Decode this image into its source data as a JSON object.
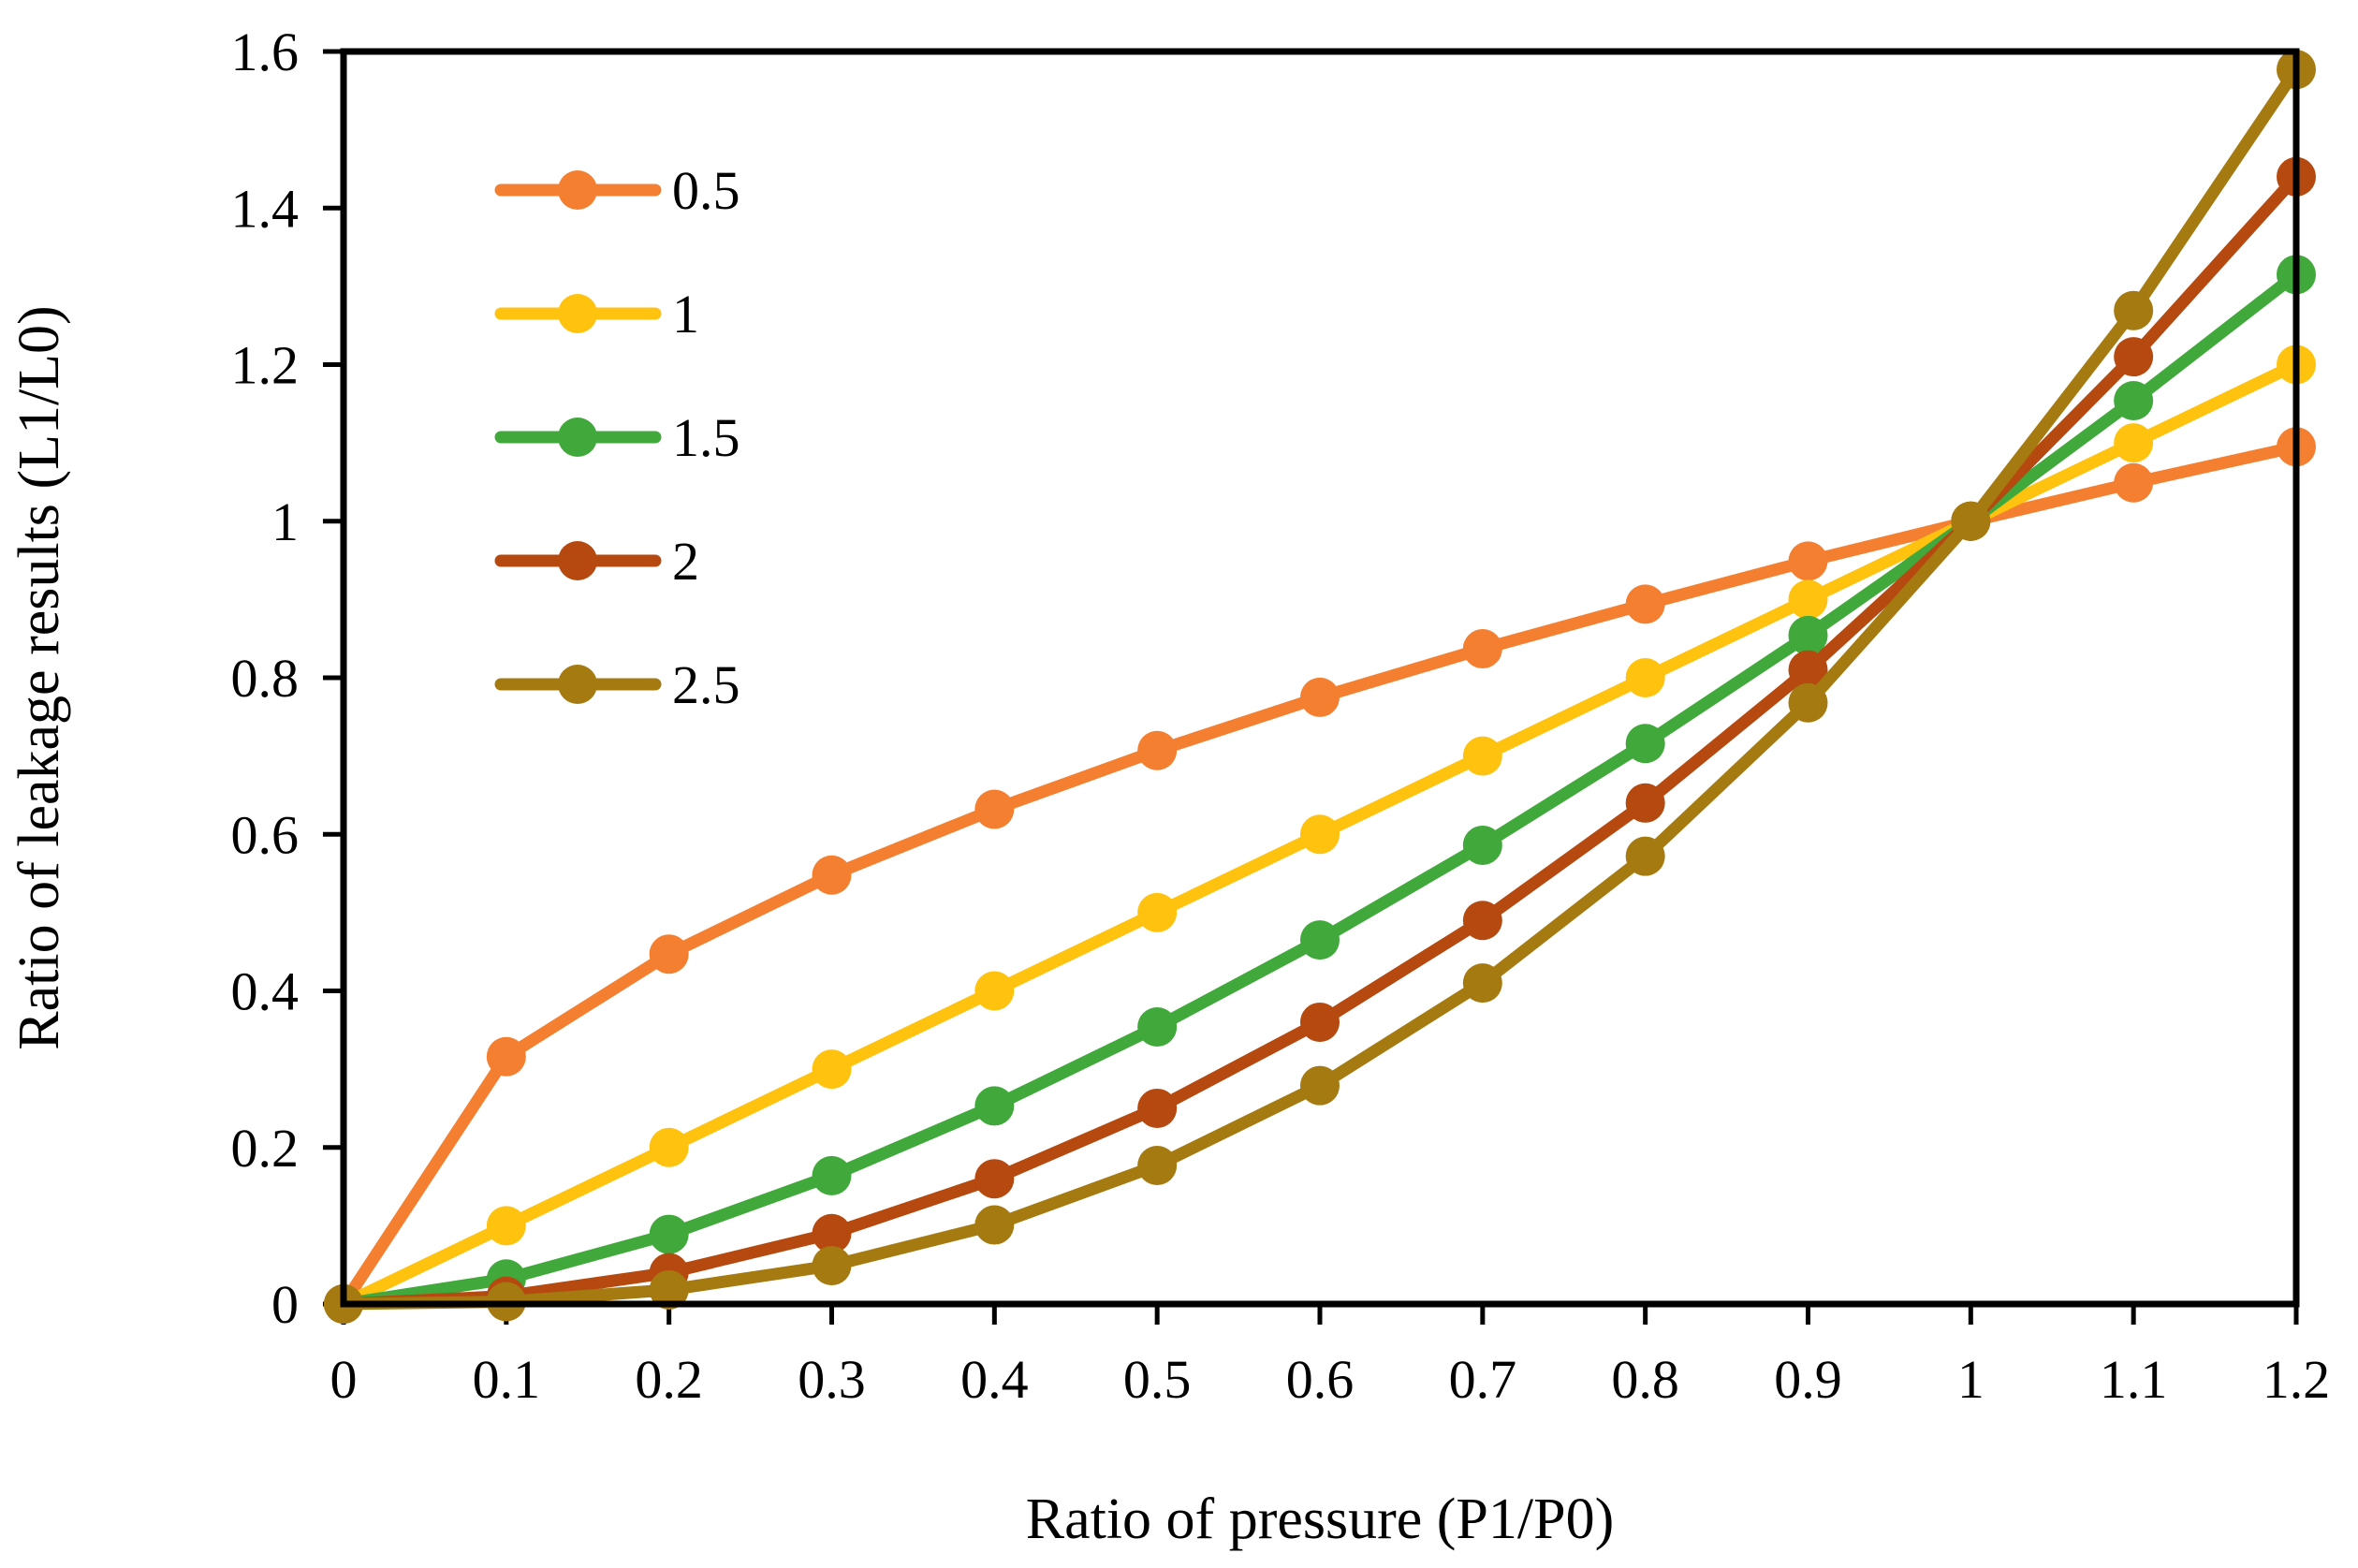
{
  "chart_data": {
    "type": "line",
    "title": "",
    "xlabel": "Ratio of pressure (P1/P0)",
    "ylabel": "Ratio of leakage results (L1/L0)",
    "xlim": [
      0,
      1.2
    ],
    "ylim": [
      0,
      1.6
    ],
    "grid": false,
    "x": [
      0,
      0.1,
      0.2,
      0.3,
      0.4,
      0.5,
      0.6,
      0.7,
      0.8,
      0.9,
      1,
      1.1,
      1.2
    ],
    "x_tick_labels": [
      "0",
      "0.1",
      "0.2",
      "0.3",
      "0.4",
      "0.5",
      "0.6",
      "0.7",
      "0.8",
      "0.9",
      "1",
      "1.1",
      "1.2"
    ],
    "y_ticks": [
      0,
      0.2,
      0.4,
      0.6,
      0.8,
      1,
      1.2,
      1.4,
      1.6
    ],
    "y_tick_labels": [
      "0",
      "0.2",
      "0.4",
      "0.6",
      "0.8",
      "1",
      "1.2",
      "1.4",
      "1.6"
    ],
    "legend_position": "top-left",
    "series": [
      {
        "name": "0.5",
        "color": "#F47F30",
        "values": [
          0,
          0.316,
          0.447,
          0.548,
          0.632,
          0.707,
          0.775,
          0.837,
          0.894,
          0.949,
          1,
          1.049,
          1.095
        ]
      },
      {
        "name": "1",
        "color": "#FFC20E",
        "values": [
          0,
          0.1,
          0.2,
          0.3,
          0.4,
          0.5,
          0.6,
          0.7,
          0.8,
          0.9,
          1,
          1.1,
          1.2
        ]
      },
      {
        "name": "1.5",
        "color": "#41A93B",
        "values": [
          0,
          0.032,
          0.089,
          0.164,
          0.253,
          0.354,
          0.465,
          0.586,
          0.716,
          0.854,
          1,
          1.154,
          1.315
        ]
      },
      {
        "name": "2",
        "color": "#B5490F",
        "values": [
          0,
          0.01,
          0.04,
          0.09,
          0.16,
          0.25,
          0.36,
          0.49,
          0.64,
          0.81,
          1,
          1.21,
          1.44
        ]
      },
      {
        "name": "2.5",
        "color": "#A57A10",
        "values": [
          0,
          0.003,
          0.018,
          0.049,
          0.101,
          0.177,
          0.279,
          0.41,
          0.572,
          0.768,
          1,
          1.269,
          1.577
        ]
      }
    ]
  }
}
